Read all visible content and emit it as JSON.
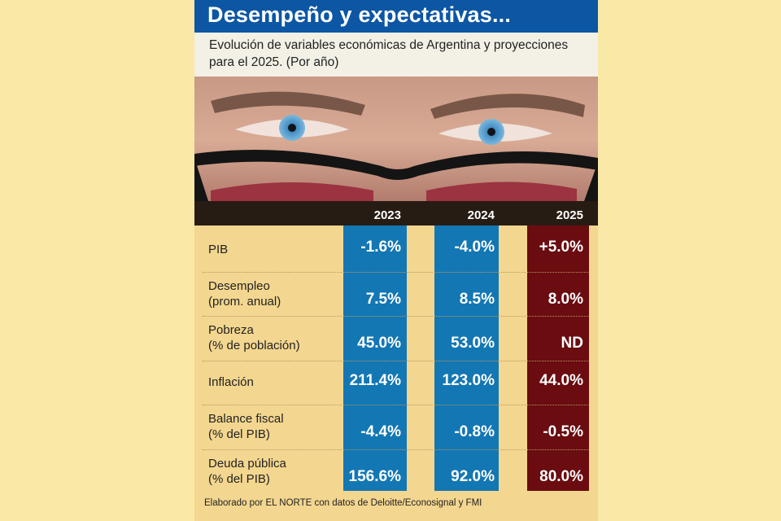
{
  "chart_data": {
    "type": "table",
    "title": "Desempeño y expectativas...",
    "subtitle": "Evolución de variables económicas de Argentina y proyecciones para el 2025. (Por año)",
    "columns": [
      "2023",
      "2024",
      "2025"
    ],
    "rows": [
      {
        "label": [
          "PIB"
        ],
        "values": [
          "-1.6%",
          "-4.0%",
          "+5.0%"
        ]
      },
      {
        "label": [
          "Desempleo",
          "(prom. anual)"
        ],
        "values": [
          "7.5%",
          "8.5%",
          "8.0%"
        ]
      },
      {
        "label": [
          "Pobreza",
          "(% de población)"
        ],
        "values": [
          "45.0%",
          "53.0%",
          "ND"
        ]
      },
      {
        "label": [
          "Inflación"
        ],
        "values": [
          "211.4%",
          "123.0%",
          "44.0%"
        ]
      },
      {
        "label": [
          "Balance fiscal",
          "(% del PIB)"
        ],
        "values": [
          "-4.4%",
          "-0.8%",
          "-0.5%"
        ]
      },
      {
        "label": [
          "Deuda pública",
          "(% del PIB)"
        ],
        "values": [
          "156.6%",
          "92.0%",
          "80.0%"
        ]
      }
    ],
    "source": "Elaborado por EL NORTE con datos de Deloitte/Econosignal y FMI"
  },
  "colors": {
    "title_bg": "#0c56a4",
    "actual_column": "#1377b4",
    "projection_column": "#6a0c10",
    "background": "#f3d68f",
    "header_band": "#271c14"
  }
}
